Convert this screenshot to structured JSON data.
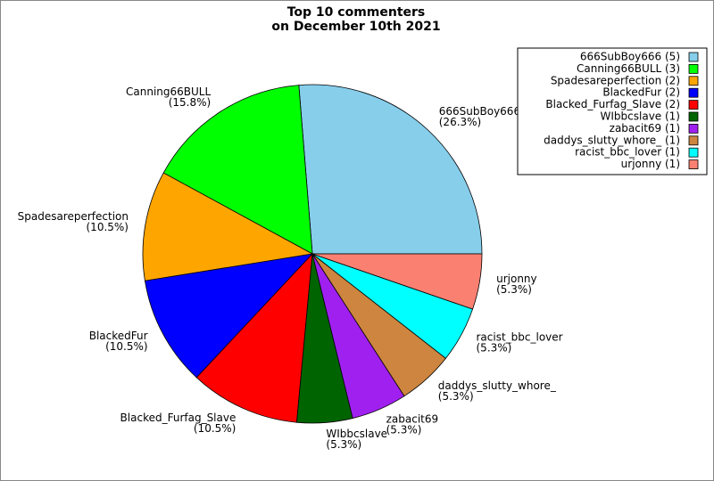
{
  "chart_data": {
    "type": "pie",
    "title": [
      "Top 10 commenters",
      "on December 10th 2021"
    ],
    "categories": [
      "666SubBoy666",
      "Canning66BULL",
      "Spadesareperfection",
      "BlackedFur",
      "Blacked_Furfag_Slave",
      "WIbbcslave",
      "zabacit69",
      "daddys_slutty_whore_",
      "racist_bbc_lover",
      "urjonny"
    ],
    "values": [
      26.3,
      15.8,
      10.5,
      10.5,
      10.5,
      5.3,
      5.3,
      5.3,
      5.3,
      5.3
    ],
    "value_labels": [
      "(26.3%)",
      "(15.8%)",
      "(10.5%)",
      "(10.5%)",
      "(10.5%)",
      "(5.3%)",
      "(5.3%)",
      "(5.3%)",
      "(5.3%)",
      "(5.3%)"
    ],
    "legend": [
      "666SubBoy666 (5)",
      "Canning66BULL (3)",
      "Spadesareperfection (2)",
      "BlackedFur (2)",
      "Blacked_Furfag_Slave (2)",
      "WIbbcslave (1)",
      "zabacit69 (1)",
      "daddys_slutty_whore_ (1)",
      "racist_bbc_lover (1)",
      "urjonny (1)"
    ],
    "colors": [
      "#87ceeb",
      "#00ff00",
      "#ffa500",
      "#0000ff",
      "#ff0000",
      "#006400",
      "#a020f0",
      "#cd853f",
      "#00ffff",
      "#fa8072"
    ],
    "legend_position": "upper right"
  }
}
